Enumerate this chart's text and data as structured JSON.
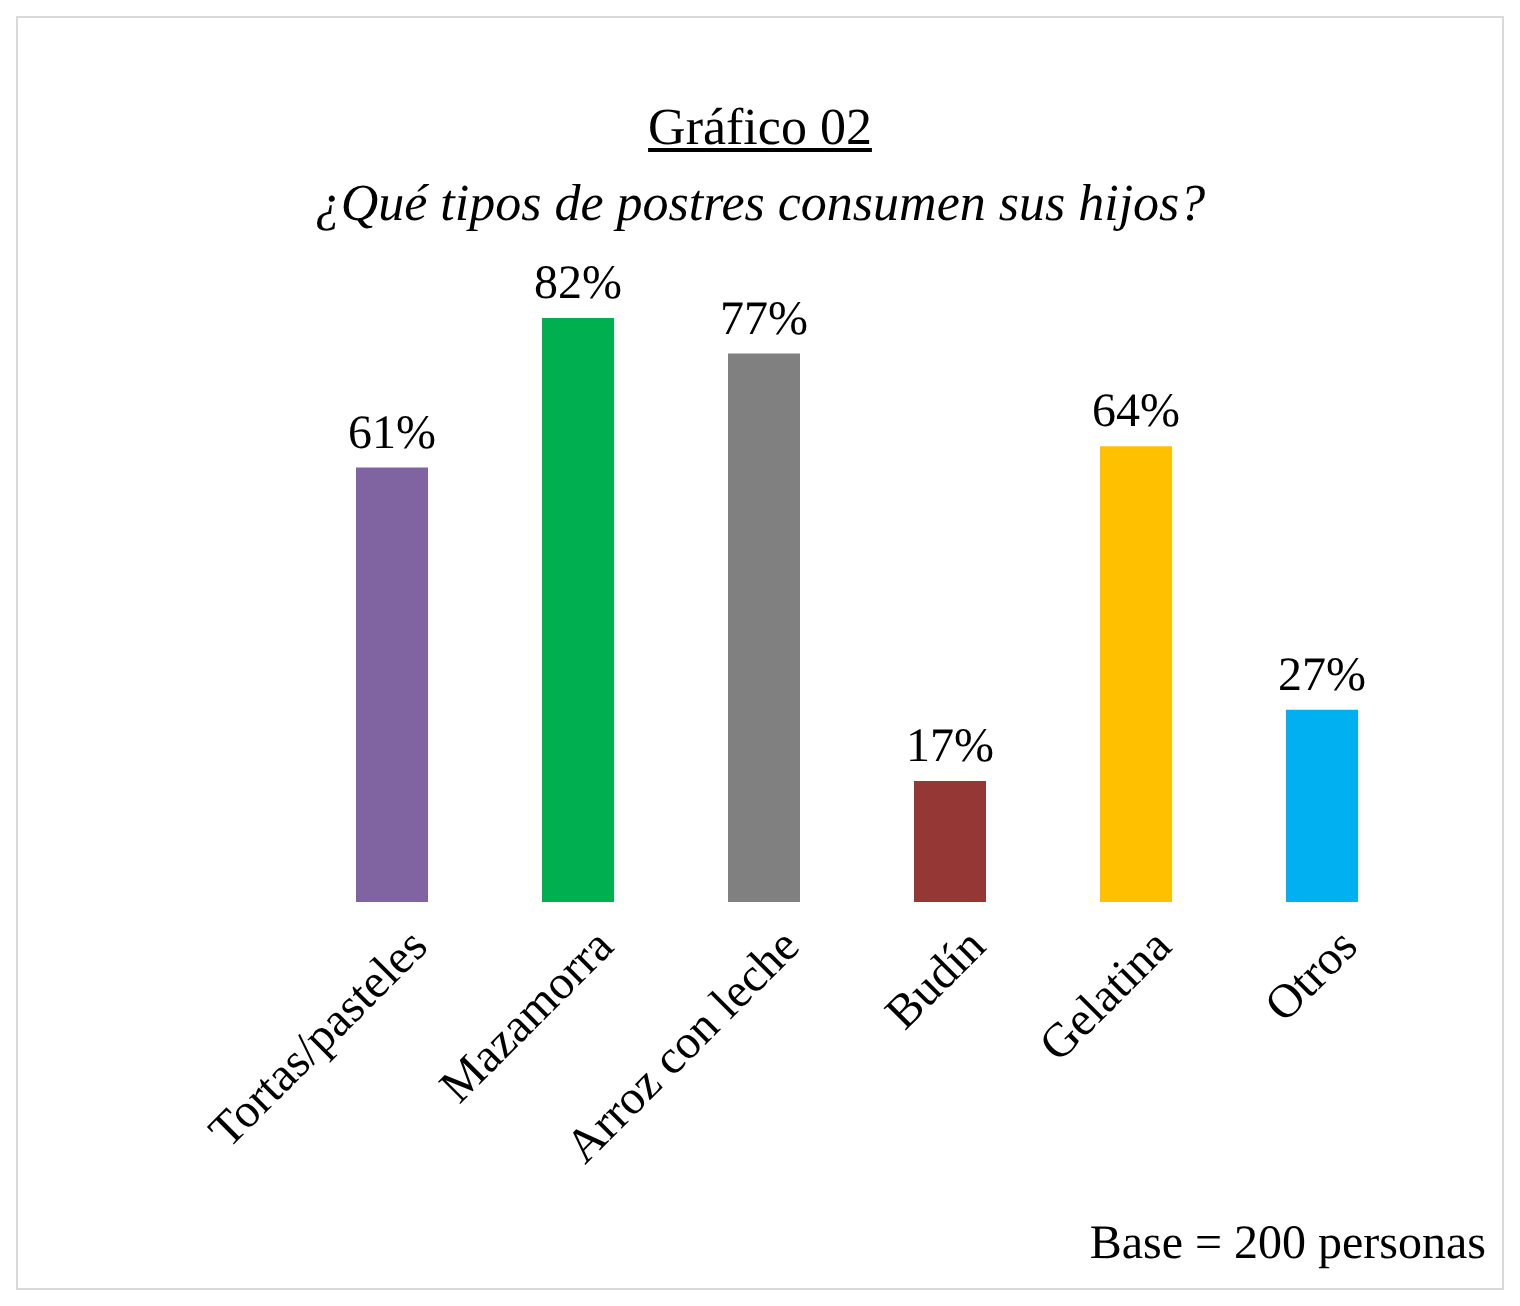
{
  "chart_data": {
    "type": "bar",
    "title": "Gráfico 02",
    "subtitle": "¿Qué tipos de postres consumen sus hijos?",
    "categories": [
      "Tortas/pasteles",
      "Mazamorra",
      "Arroz con leche",
      "Budín",
      "Gelatina",
      "Otros"
    ],
    "values": [
      61,
      82,
      77,
      17,
      64,
      27
    ],
    "colors": [
      "#8064a2",
      "#00b050",
      "#808080",
      "#953735",
      "#ffc000",
      "#00b0f0"
    ],
    "value_labels": [
      "61%",
      "82%",
      "77%",
      "17%",
      "64%",
      "27%"
    ],
    "annotations": [
      "Base = 200 personas"
    ]
  }
}
